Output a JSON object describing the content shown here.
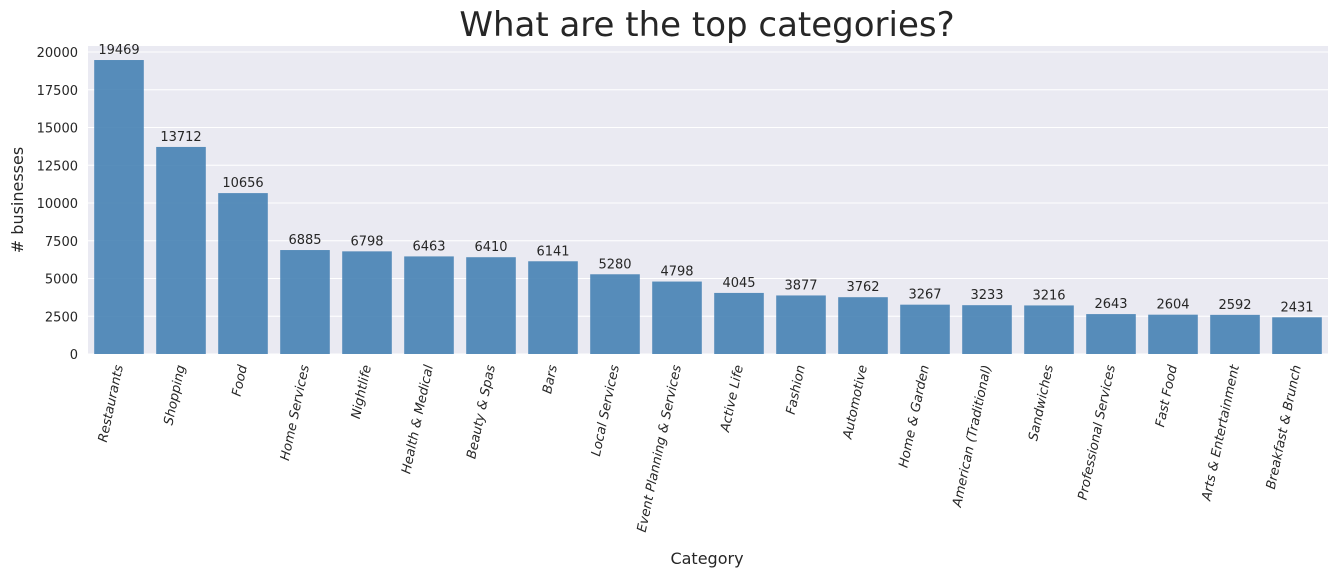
{
  "chart_data": {
    "type": "bar",
    "title": "What are the top categories?",
    "xlabel": "Category",
    "ylabel": "# businesses",
    "ylim": [
      0,
      20000
    ],
    "yticks": [
      0,
      2500,
      5000,
      7500,
      10000,
      12500,
      15000,
      17500,
      20000
    ],
    "grid": true,
    "bar_color": "#4682b4",
    "categories": [
      "Restaurants",
      "Shopping",
      "Food",
      "Home Services",
      "Nightlife",
      "Health & Medical",
      "Beauty & Spas",
      "Bars",
      "Local Services",
      "Event Planning & Services",
      "Active Life",
      "Fashion",
      "Automotive",
      "Home & Garden",
      "American (Traditional)",
      "Sandwiches",
      "Professional Services",
      "Fast Food",
      "Arts & Entertainment",
      "Breakfast & Brunch"
    ],
    "values": [
      19469,
      13712,
      10656,
      6885,
      6798,
      6463,
      6410,
      6141,
      5280,
      4798,
      4045,
      3877,
      3762,
      3267,
      3233,
      3216,
      2643,
      2604,
      2592,
      2431
    ]
  }
}
